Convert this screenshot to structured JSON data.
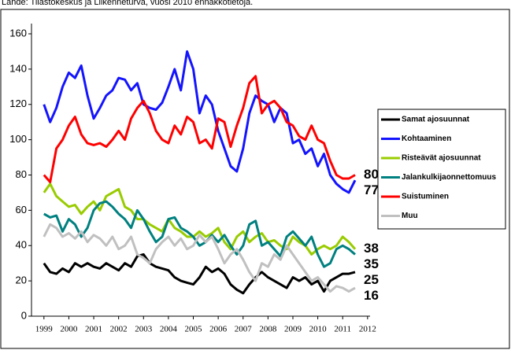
{
  "chart_data": {
    "type": "line",
    "source": "Lähde: Tilastokeskus ja Liikenneturva, vuosi 2010  ennakkotietoja.",
    "x": [
      1999,
      1999.25,
      1999.5,
      1999.75,
      2000,
      2000.25,
      2000.5,
      2000.75,
      2001,
      2001.25,
      2001.5,
      2001.75,
      2002,
      2002.25,
      2002.5,
      2002.75,
      2003,
      2003.25,
      2003.5,
      2003.75,
      2004,
      2004.25,
      2004.5,
      2004.75,
      2005,
      2005.25,
      2005.5,
      2005.75,
      2006,
      2006.25,
      2006.5,
      2006.75,
      2007,
      2007.25,
      2007.5,
      2007.75,
      2008,
      2008.25,
      2008.5,
      2008.75,
      2009,
      2009.25,
      2009.5,
      2009.75,
      2010,
      2010.25,
      2010.5,
      2010.75,
      2011,
      2011.25,
      2011.5
    ],
    "series": [
      {
        "name": "Samat ajosuunnat",
        "color": "#000000",
        "values": [
          30,
          25,
          24,
          27,
          25,
          30,
          28,
          30,
          28,
          27,
          30,
          28,
          26,
          30,
          28,
          34,
          35,
          30,
          28,
          27,
          26,
          22,
          20,
          19,
          18,
          22,
          28,
          25,
          27,
          24,
          18,
          15,
          13,
          18,
          22,
          25,
          22,
          20,
          18,
          16,
          22,
          20,
          22,
          18,
          20,
          14,
          20,
          22,
          24,
          24,
          25
        ]
      },
      {
        "name": "Kohtaaminen",
        "color": "#1414ff",
        "values": [
          120,
          110,
          118,
          130,
          138,
          135,
          142,
          125,
          112,
          118,
          125,
          128,
          135,
          134,
          128,
          132,
          120,
          118,
          117,
          121,
          130,
          140,
          128,
          150,
          140,
          115,
          125,
          120,
          105,
          95,
          85,
          82,
          95,
          115,
          125,
          122,
          120,
          110,
          118,
          115,
          98,
          100,
          92,
          95,
          85,
          92,
          80,
          75,
          72,
          70,
          77
        ]
      },
      {
        "name": "Risteävät ajosuunnat",
        "color": "#99cc00",
        "values": [
          70,
          75,
          68,
          65,
          62,
          63,
          58,
          62,
          65,
          60,
          68,
          70,
          72,
          62,
          60,
          55,
          55,
          52,
          50,
          48,
          55,
          50,
          48,
          45,
          45,
          48,
          45,
          47,
          50,
          42,
          38,
          45,
          48,
          42,
          45,
          47,
          42,
          43,
          40,
          38,
          45,
          42,
          40,
          35,
          38,
          40,
          38,
          40,
          45,
          42,
          38
        ]
      },
      {
        "name": "Jalankulkijaonnettomuus",
        "color": "#008080",
        "values": [
          58,
          56,
          57,
          48,
          55,
          52,
          45,
          50,
          60,
          64,
          65,
          62,
          58,
          55,
          50,
          60,
          55,
          48,
          42,
          45,
          55,
          56,
          50,
          48,
          45,
          40,
          42,
          46,
          42,
          46,
          40,
          35,
          40,
          52,
          54,
          40,
          42,
          38,
          34,
          45,
          48,
          44,
          40,
          45,
          35,
          28,
          30,
          38,
          40,
          38,
          35
        ]
      },
      {
        "name": "Suistuminen",
        "color": "#ff0000",
        "values": [
          80,
          76,
          95,
          100,
          108,
          113,
          103,
          98,
          97,
          98,
          96,
          100,
          105,
          100,
          112,
          118,
          122,
          115,
          105,
          100,
          98,
          108,
          103,
          113,
          110,
          98,
          100,
          95,
          112,
          110,
          96,
          108,
          118,
          132,
          136,
          115,
          120,
          122,
          118,
          110,
          108,
          102,
          100,
          108,
          100,
          98,
          88,
          80,
          78,
          78,
          80
        ]
      },
      {
        "name": "Muu",
        "color": "#c0c0c0",
        "values": [
          45,
          52,
          50,
          45,
          47,
          44,
          48,
          42,
          46,
          44,
          40,
          45,
          38,
          40,
          45,
          35,
          33,
          30,
          38,
          42,
          45,
          40,
          44,
          38,
          40,
          46,
          42,
          45,
          38,
          30,
          35,
          38,
          32,
          25,
          20,
          30,
          28,
          35,
          32,
          40,
          35,
          30,
          25,
          20,
          22,
          18,
          14,
          17,
          16,
          14,
          16
        ]
      }
    ],
    "xlim": [
      1998.5,
      2012.1
    ],
    "xticks": [
      1999,
      2000,
      2001,
      2002,
      2003,
      2004,
      2005,
      2006,
      2007,
      2008,
      2009,
      2010,
      2011,
      2012
    ],
    "ylim": [
      0,
      160
    ],
    "yticks": [
      0,
      20,
      40,
      60,
      80,
      100,
      120,
      140,
      160
    ]
  }
}
